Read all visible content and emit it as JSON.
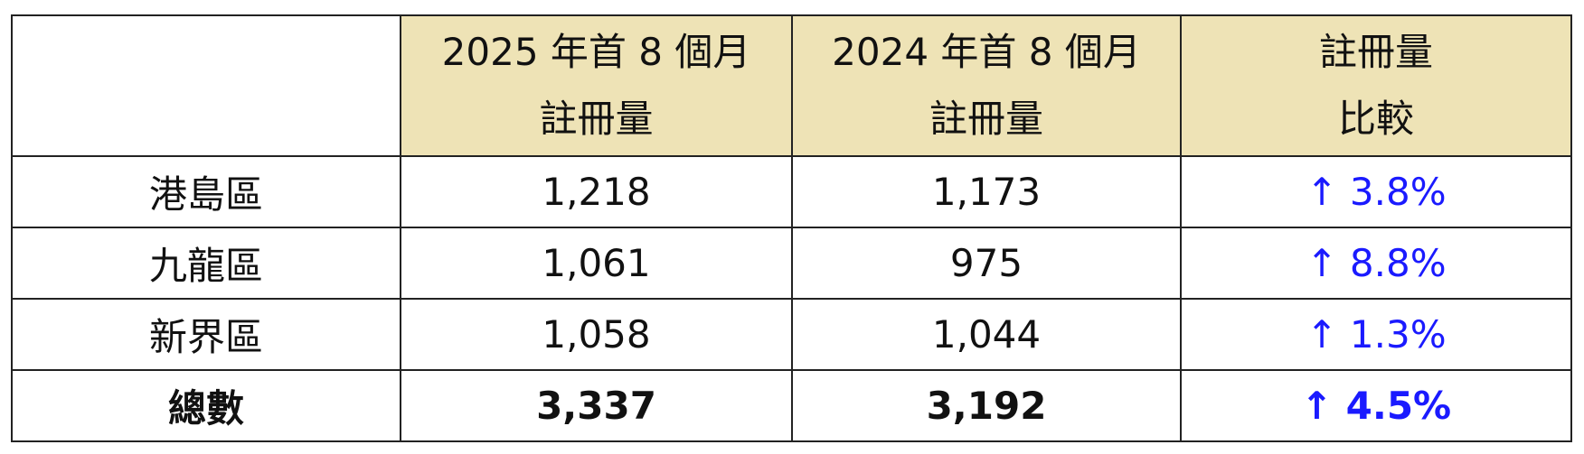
{
  "table": {
    "header": [
      [
        "2025 年首 8 個月",
        "註冊量"
      ],
      [
        "2024 年首 8 個月",
        "註冊量"
      ],
      [
        "註冊量",
        "比較"
      ]
    ],
    "rows": [
      [
        "港島區",
        "1,218",
        "1,173",
        "↑ 3.8%"
      ],
      [
        "九龍區",
        "1,061",
        "975",
        "↑ 8.8%"
      ],
      [
        "新界區",
        "1,058",
        "1,044",
        "↑ 1.3%"
      ]
    ],
    "total": [
      "總數",
      "3,337",
      "3,192",
      "↑ 4.5%"
    ]
  }
}
